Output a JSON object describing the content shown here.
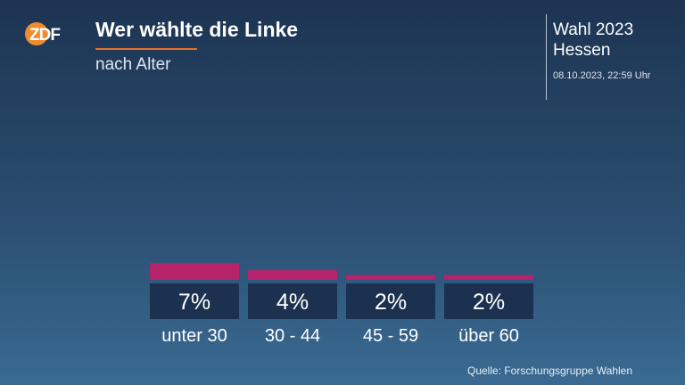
{
  "header": {
    "logo_text": "ZDF",
    "title": "Wer wählte die Linke",
    "subtitle": "nach Alter"
  },
  "election": {
    "line1": "Wahl 2023",
    "line2": "Hessen",
    "timestamp": "08.10.2023, 22:59 Uhr"
  },
  "source": "Quelle: Forschungsgruppe Wahlen",
  "colors": {
    "bar": "#b5236b",
    "label_box": "#1c3150",
    "accent": "#e8702a",
    "logo": "#f08c2c"
  },
  "chart_data": {
    "type": "bar",
    "categories": [
      "unter 30",
      "30 - 44",
      "45 - 59",
      "über 60"
    ],
    "values": [
      7,
      4,
      2,
      2
    ],
    "value_labels": [
      "7%",
      "4%",
      "2%",
      "2%"
    ],
    "unit": "%",
    "title": "",
    "xlabel": "",
    "ylabel": "",
    "grid": false
  }
}
